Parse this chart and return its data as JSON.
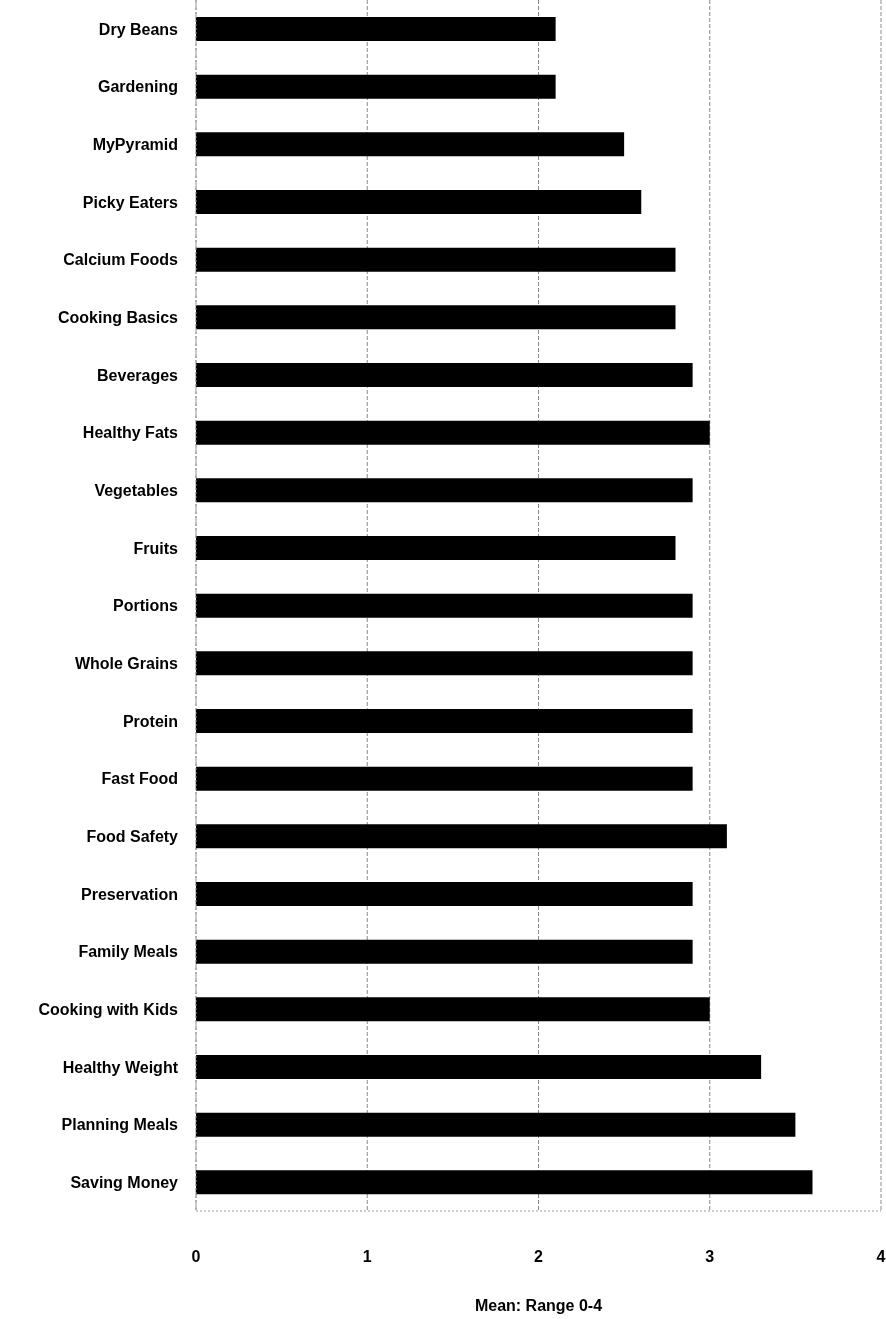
{
  "chart_data": {
    "type": "bar",
    "orientation": "horizontal",
    "categories": [
      "Dry Beans",
      "Gardening",
      "MyPyramid",
      "Picky Eaters",
      "Calcium Foods",
      "Cooking Basics",
      "Beverages",
      "Healthy Fats",
      "Vegetables",
      "Fruits",
      "Portions",
      "Whole Grains",
      "Protein",
      "Fast Food",
      "Food Safety",
      "Preservation",
      "Family Meals",
      "Cooking with Kids",
      "Healthy Weight",
      "Planning Meals",
      "Saving Money"
    ],
    "values": [
      2.1,
      2.1,
      2.5,
      2.6,
      2.8,
      2.8,
      2.9,
      3.0,
      2.9,
      2.8,
      2.9,
      2.9,
      2.9,
      2.9,
      3.1,
      2.9,
      2.9,
      3.0,
      3.3,
      3.5,
      3.6
    ],
    "color": "#000000",
    "xlabel": "Mean: Range 0-4",
    "xlim": [
      0,
      4
    ],
    "xticks": [
      0,
      1,
      2,
      3,
      4
    ],
    "grid": "x"
  }
}
